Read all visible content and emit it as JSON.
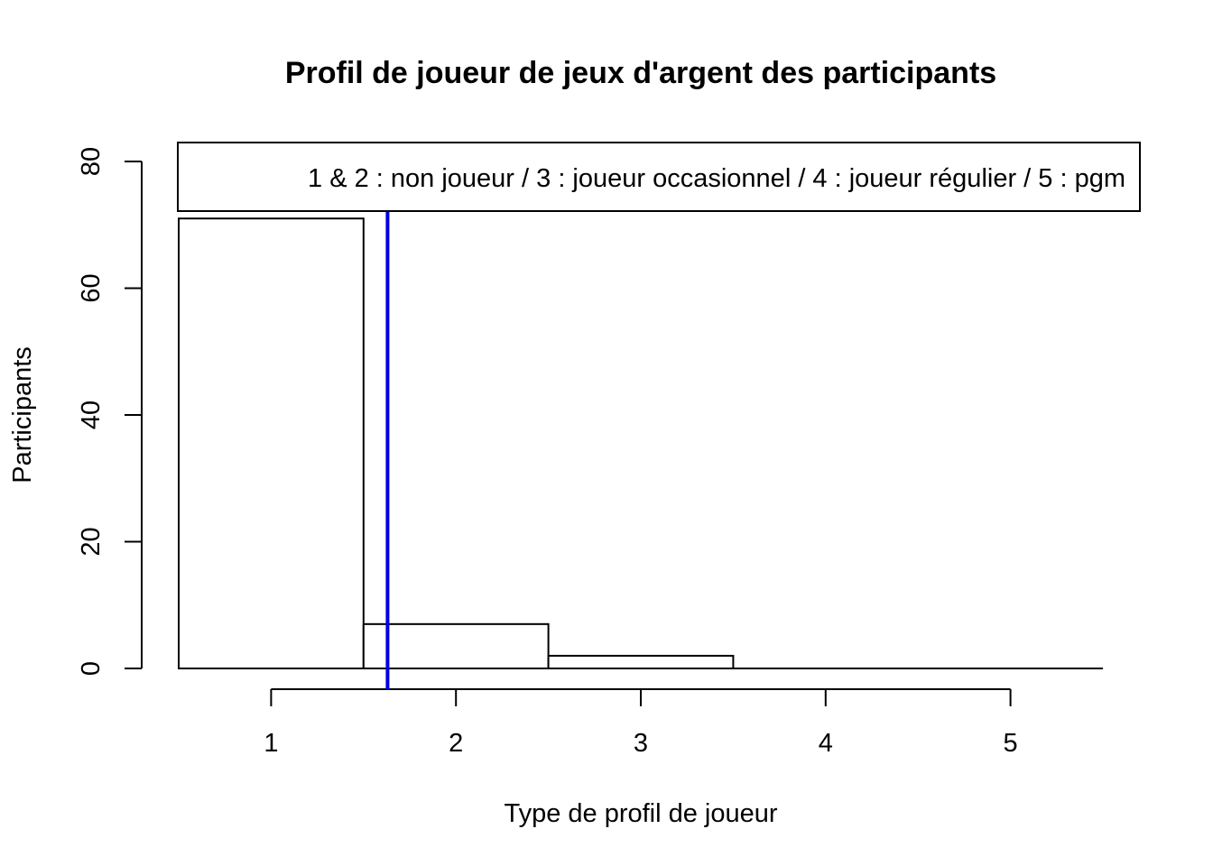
{
  "chart_data": {
    "type": "bar",
    "title": "Profil de joueur de jeux d'argent des participants",
    "xlabel": "Type de profil de joueur",
    "ylabel": "Participants",
    "bins": [
      {
        "from": 0.5,
        "to": 1.5,
        "value": 71
      },
      {
        "from": 1.5,
        "to": 2.5,
        "value": 7
      },
      {
        "from": 2.5,
        "to": 3.5,
        "value": 2
      },
      {
        "from": 3.5,
        "to": 4.5,
        "value": 0
      },
      {
        "from": 4.5,
        "to": 5.5,
        "value": 0
      }
    ],
    "xlim": [
      0.5,
      5.5
    ],
    "ylim": [
      0,
      80
    ],
    "x_ticks": [
      1,
      2,
      3,
      4,
      5
    ],
    "y_ticks": [
      0,
      20,
      40,
      60,
      80
    ],
    "vline": {
      "x": 1.63,
      "color": "#0000dd"
    },
    "legend": {
      "text": "1 & 2 : non joueur / 3 : joueur occasionnel / 4 : joueur régulier / 5 : pgm",
      "position": "top"
    },
    "grid": false
  }
}
